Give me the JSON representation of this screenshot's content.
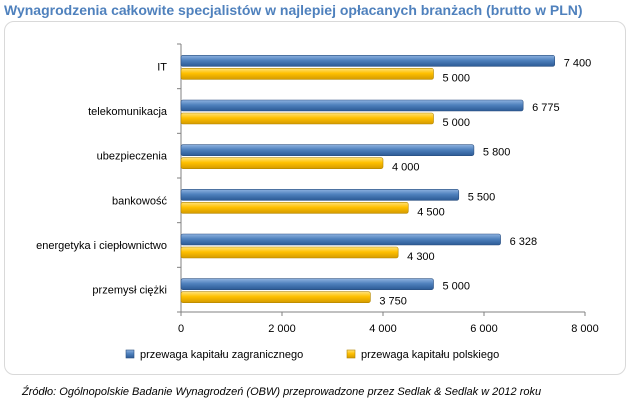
{
  "title": "Wynagrodzenia całkowite specjalistów w najlepiej opłacanych branżach (brutto w PLN)",
  "source": "Źródło: Ogólnopolskie Badanie Wynagrodzeń (OBW) przeprowadzone przez Sedlak & Sedlak w 2012 roku",
  "colors": {
    "series_foreign": "#4f81bd",
    "series_polish": "#ffc000"
  },
  "chart_data": {
    "type": "bar",
    "orientation": "horizontal",
    "title": "Wynagrodzenia całkowite specjalistów w najlepiej opłacanych branżach (brutto w PLN)",
    "categories": [
      "IT",
      "telekomunikacja",
      "ubezpieczenia",
      "bankowość",
      "energetyka i ciepłownictwo",
      "przemysł ciężki"
    ],
    "series": [
      {
        "name": "przewaga kapitału  zagranicznego",
        "values": [
          7400,
          6775,
          5800,
          5500,
          6328,
          5000
        ],
        "labels": [
          "7 400",
          "6 775",
          "5 800",
          "5 500",
          "6 328",
          "5 000"
        ]
      },
      {
        "name": "przewaga kapitału  polskiego",
        "values": [
          5000,
          5000,
          4000,
          4500,
          4300,
          3750
        ],
        "labels": [
          "5 000",
          "5 000",
          "4 000",
          "4 500",
          "4 300",
          "3 750"
        ]
      }
    ],
    "xlim": [
      0,
      8000
    ],
    "ticks": [
      0,
      2000,
      4000,
      6000,
      8000
    ],
    "tick_labels": [
      "0",
      "2 000",
      "4 000",
      "6 000",
      "8 000"
    ],
    "grid": false,
    "legend_position": "bottom"
  }
}
